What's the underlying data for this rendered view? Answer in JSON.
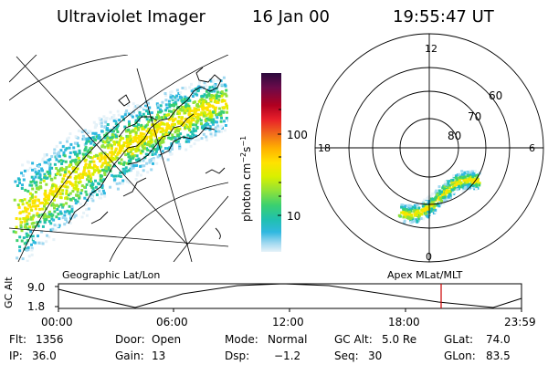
{
  "header": {
    "instrument": "Ultraviolet Imager",
    "date": "16 Jan 00",
    "time": "19:55:47 UT"
  },
  "colorbar": {
    "unit_label": "photon cm",
    "unit_sup1": "−2",
    "unit_s": "s",
    "unit_sup2": "−1",
    "tick_100": "100",
    "tick_10": "10",
    "colors": [
      "#2b0a3d",
      "#6a0a4a",
      "#b00020",
      "#e8202a",
      "#f06a1a",
      "#ffb000",
      "#ffe200",
      "#d8f000",
      "#8fe23a",
      "#3ad070",
      "#20c0b0",
      "#30b8e0",
      "#9fd8f0",
      "#e6f2f8"
    ]
  },
  "map_labels": {
    "left": "Geographic Lat/Lon",
    "right": "Apex  MLat/MLT"
  },
  "polar": {
    "mlt_12": "12",
    "mlt_18": "18",
    "mlt_6": "6",
    "mlt_0": "0",
    "lat_60": "60",
    "lat_70": "70",
    "lat_80": "80"
  },
  "timeline": {
    "axis_label": "GC Alt",
    "y_top": "9.0",
    "y_bottom": "1.8",
    "ticks": [
      "00:00",
      "06:00",
      "12:00",
      "18:00",
      "23:59"
    ],
    "marker_color": "#cc0000"
  },
  "info": {
    "flt_label": "Flt:",
    "flt_value": "1356",
    "ip_label": "IP:",
    "ip_value": "36.0",
    "door_label": "Door:",
    "door_value": "Open",
    "gain_label": "Gain:",
    "gain_value": "13",
    "mode_label": "Mode:",
    "mode_value": "Normal",
    "dsp_label": "Dsp:",
    "dsp_value": "−1.2",
    "gcalt_label": "GC Alt:",
    "gcalt_value": "5.0 Re",
    "seq_label": "Seq:",
    "seq_value": "30",
    "glat_label": "GLat:",
    "glat_value": "74.0",
    "glon_label": "GLon:",
    "glon_value": "83.5"
  }
}
